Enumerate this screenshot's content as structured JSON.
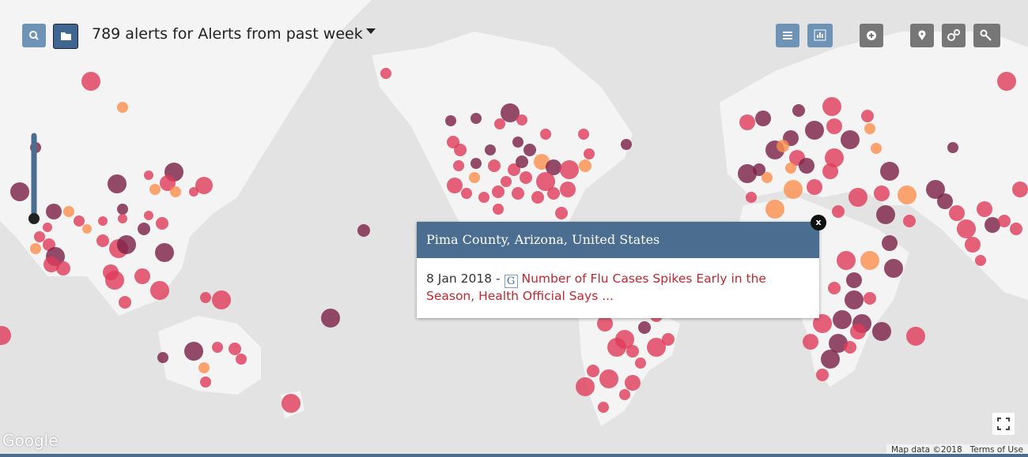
{
  "header": {
    "title": "789 alerts for Alerts from past week"
  },
  "popup": {
    "location": "Pima County, Arizona, United States",
    "date": "8 Jan 2018",
    "separator": "-",
    "source_icon": "G",
    "headline": "Number of Flu Cases Spikes Early in the Season, Health Official Says ...",
    "close": "x"
  },
  "map": {
    "logo": "Google",
    "attribution": "Map data ©2018",
    "terms": "Terms of Use"
  }
}
